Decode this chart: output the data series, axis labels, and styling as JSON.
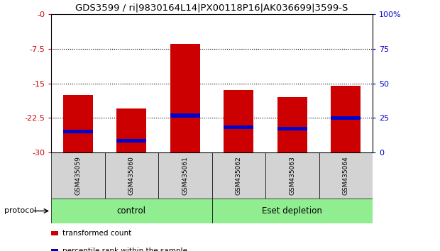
{
  "title": "GDS3599 / ri|9830164L14|PX00118P16|AK036699|3599-S",
  "samples": [
    "GSM435059",
    "GSM435060",
    "GSM435061",
    "GSM435062",
    "GSM435063",
    "GSM435064"
  ],
  "red_bar_tops": [
    -17.5,
    -20.5,
    -6.5,
    -16.5,
    -18.0,
    -15.5
  ],
  "red_bar_bottom": -30,
  "blue_marker_pos": [
    -25.5,
    -27.5,
    -22.0,
    -24.5,
    -24.8,
    -22.5
  ],
  "left_ylim": [
    -30,
    0
  ],
  "right_ylim": [
    0,
    100
  ],
  "left_yticks": [
    0,
    -7.5,
    -15,
    -22.5,
    -30
  ],
  "right_yticks": [
    0,
    25,
    50,
    75,
    100
  ],
  "left_yticklabels": [
    "-0",
    "-7.5",
    "-15",
    "-22.5",
    "-30"
  ],
  "right_yticklabels": [
    "0",
    "25",
    "50",
    "75",
    "100%"
  ],
  "left_ytick_color": "#cc0000",
  "right_ytick_color": "#0000cc",
  "dotted_lines": [
    -7.5,
    -15,
    -22.5
  ],
  "groups": [
    {
      "label": "control",
      "span": [
        0,
        2
      ],
      "color": "#90ee90"
    },
    {
      "label": "Eset depletion",
      "span": [
        3,
        5
      ],
      "color": "#90ee90"
    }
  ],
  "group_row_label": "protocol",
  "bar_color": "#cc0000",
  "marker_color": "#0000cc",
  "legend_items": [
    {
      "color": "#cc0000",
      "label": "transformed count"
    },
    {
      "color": "#0000cc",
      "label": "percentile rank within the sample"
    }
  ],
  "background_color": "#ffffff",
  "tick_label_area_color": "#d3d3d3",
  "bar_width": 0.55,
  "figsize": [
    6.2,
    3.54
  ],
  "dpi": 100
}
